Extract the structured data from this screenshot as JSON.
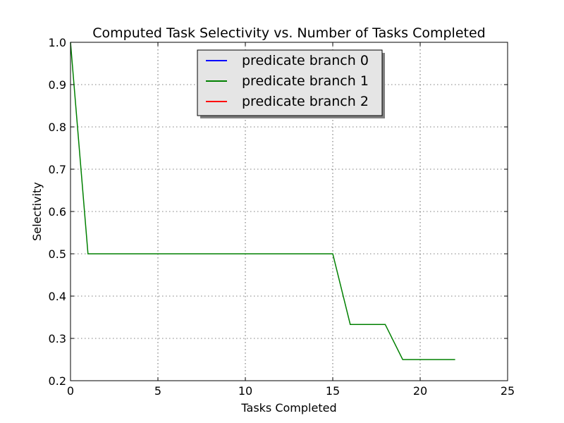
{
  "chart_data": {
    "type": "line",
    "title": "Computed Task Selectivity vs. Number of Tasks Completed",
    "xlabel": "Tasks Completed",
    "ylabel": "Selectivity",
    "xlim": [
      0,
      25
    ],
    "ylim": [
      0.2,
      1.0
    ],
    "xticks": [
      0,
      5,
      10,
      15,
      20,
      25
    ],
    "yticks": [
      0.2,
      0.3,
      0.4,
      0.5,
      0.6,
      0.7,
      0.8,
      0.9,
      1.0
    ],
    "xtick_labels": [
      "0",
      "5",
      "10",
      "15",
      "20",
      "25"
    ],
    "ytick_labels": [
      "0.2",
      "0.3",
      "0.4",
      "0.5",
      "0.6",
      "0.7",
      "0.8",
      "0.9",
      "1.0"
    ],
    "grid": true,
    "legend_position": "top-center",
    "series": [
      {
        "name": "predicate branch 0",
        "color": "#0000ff",
        "x": [],
        "y": []
      },
      {
        "name": "predicate branch 1",
        "color": "#008000",
        "x": [
          0,
          1,
          15,
          16,
          18,
          19,
          22
        ],
        "y": [
          1.0,
          0.5,
          0.5,
          0.333,
          0.333,
          0.25,
          0.25
        ]
      },
      {
        "name": "predicate branch 2",
        "color": "#ff0000",
        "x": [],
        "y": []
      }
    ]
  }
}
